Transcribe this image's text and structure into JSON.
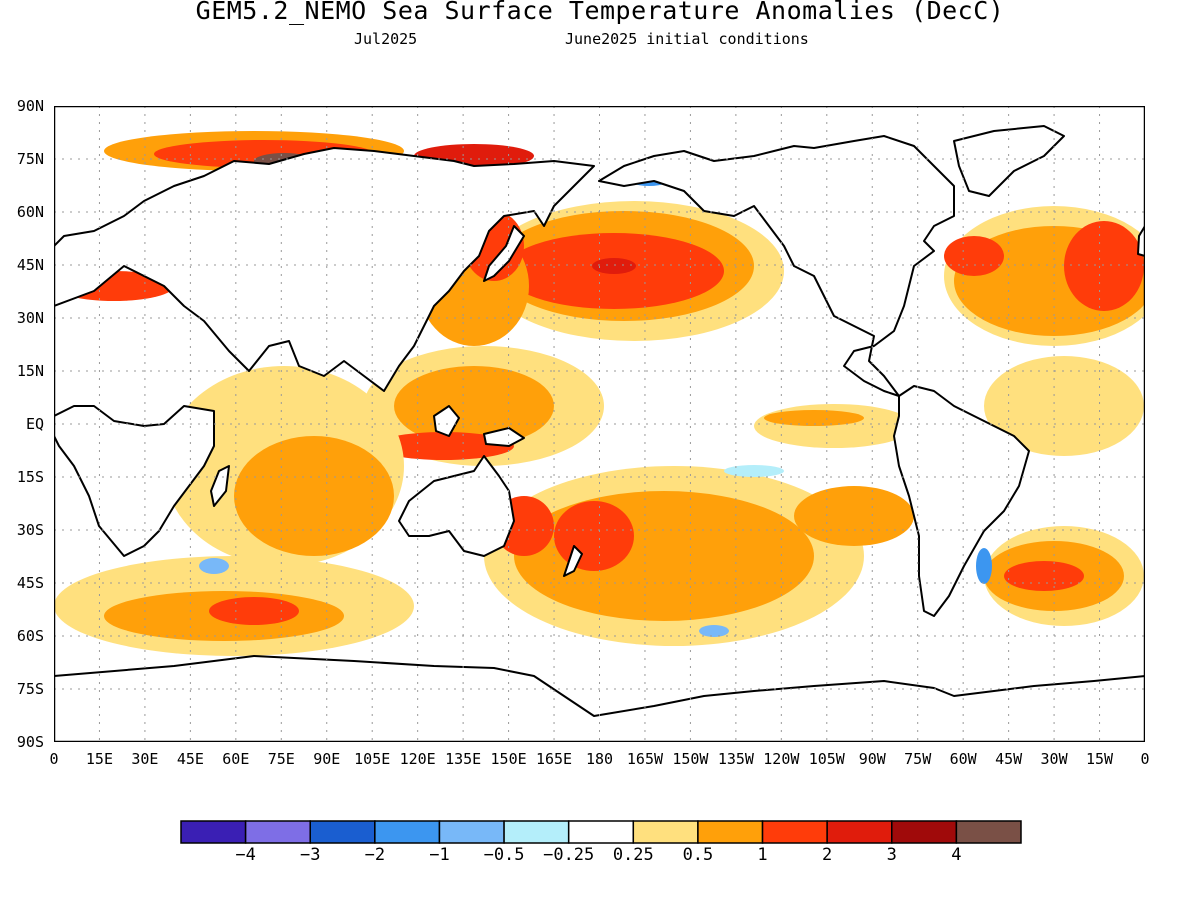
{
  "title": "GEM5.2_NEMO Sea Surface Temperature Anomalies (DecC)",
  "subtitle_left": "Jul2025",
  "subtitle_right": "June2025 initial conditions",
  "y_axis_labels": [
    "90N",
    "75N",
    "60N",
    "45N",
    "30N",
    "15N",
    "EQ",
    "15S",
    "30S",
    "45S",
    "60S",
    "75S",
    "90S"
  ],
  "x_axis_labels": [
    "0",
    "15E",
    "30E",
    "45E",
    "60E",
    "75E",
    "90E",
    "105E",
    "120E",
    "135E",
    "150E",
    "165E",
    "180",
    "165W",
    "150W",
    "135W",
    "120W",
    "105W",
    "90W",
    "75W",
    "60W",
    "45W",
    "30W",
    "15W",
    "0"
  ],
  "legend": {
    "colors": [
      "#3a1fb4",
      "#7e6ee6",
      "#1a5ed0",
      "#3c96f0",
      "#78b8f8",
      "#b4eefa",
      "#ffffff",
      "#ffe07e",
      "#ffa00a",
      "#ff3c0a",
      "#e01c0c",
      "#a00a0a",
      "#7a5046"
    ],
    "labels": [
      "−4",
      "−3",
      "−2",
      "−1",
      "−0.5",
      "−0.25",
      "0.25",
      "0.5",
      "1",
      "2",
      "3",
      "4"
    ]
  },
  "map": {
    "land_color": "#ffffff",
    "anomaly_regions": [
      {
        "level": "0.25",
        "color": "#ffe07e"
      },
      {
        "level": "0.5",
        "color": "#ffa00a"
      },
      {
        "level": "1",
        "color": "#ff3c0a"
      },
      {
        "level": "2",
        "color": "#e01c0c"
      },
      {
        "level": "3",
        "color": "#a00a0a"
      },
      {
        "level": "4",
        "color": "#7a5046"
      },
      {
        "level": "-0.25",
        "color": "#b4eefa"
      },
      {
        "level": "-0.5",
        "color": "#78b8f8"
      }
    ]
  }
}
